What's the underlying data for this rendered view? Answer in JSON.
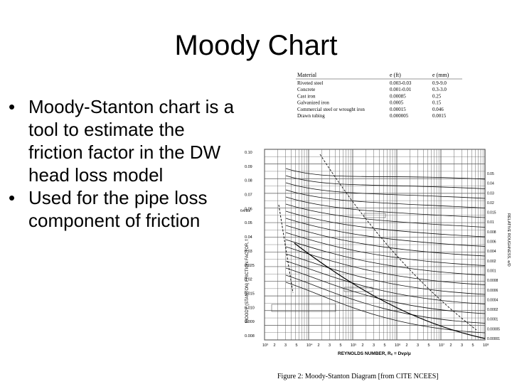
{
  "slide": {
    "title": "Moody Chart",
    "bullets": [
      "Moody-Stanton chart is a tool to estimate the friction factor in the DW head loss model",
      "Used for the pipe loss component of friction"
    ]
  },
  "figure": {
    "roughness_table": {
      "headers": [
        "Material",
        "e (ft)",
        "e (mm)"
      ],
      "rows": [
        [
          "Riveted steel",
          "0.003-0.03",
          "0.9-9.0"
        ],
        [
          "Concrete",
          "0.001-0.01",
          "0.3-3.0"
        ],
        [
          "Cast iron",
          "0.00085",
          "0.25"
        ],
        [
          "Galvanized iron",
          "0.0005",
          "0.15"
        ],
        [
          "Commercial steel or wrought iron",
          "0.00015",
          "0.046"
        ],
        [
          "Drawn tubing",
          "0.000005",
          "0.0015"
        ]
      ]
    },
    "left_ticks": [
      "0.10",
      "0.09",
      "0.08",
      "0.07",
      "0.06",
      "0.05",
      "0.04",
      "0.03",
      "0.025",
      "0.02",
      "0.015",
      "0.010",
      "0.009",
      "0.008"
    ],
    "right_ticks": [
      "0.05",
      "0.04",
      "0.03",
      "0.02",
      "0.015",
      "0.01",
      "0.008",
      "0.006",
      "0.004",
      "0.002",
      "0.001",
      "0.0008",
      "0.0006",
      "0.0004",
      "0.0002",
      "0.0001",
      "0.00005",
      "0.00001"
    ],
    "bottom_ticks": [
      "10³",
      "2",
      "3",
      "5",
      "10⁴",
      "2",
      "3",
      "5",
      "10⁵",
      "2",
      "3",
      "5",
      "10⁶",
      "2",
      "3",
      "5",
      "10⁷",
      "2",
      "3",
      "5",
      "10⁸"
    ],
    "y_axis_label": "MOODY (STANTON) FRICTION FACTOR, f",
    "x_axis_label": "REYNOLDS NUMBER, Rₑ = Dvρ/μ",
    "right_axis_label": "RELATIVE ROUGHNESS, e/D",
    "laminar_label": "64/Re",
    "caption": "Figure 2: Moody-Stanton Diagram [from CITE NCEES]"
  }
}
